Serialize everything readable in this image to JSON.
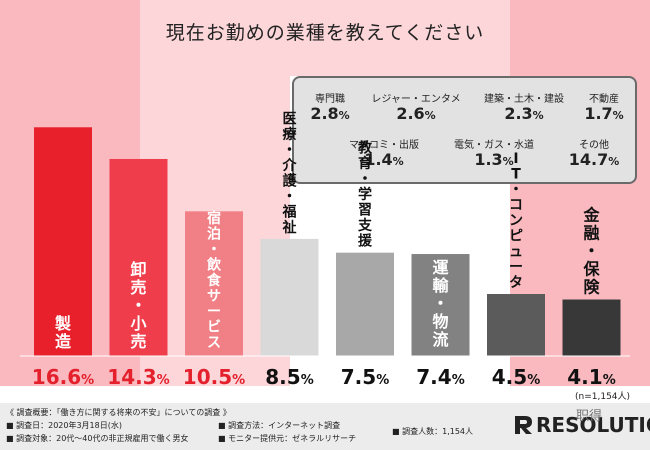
{
  "title": "現在お勤めの業種を教えてください",
  "chart_data": {
    "type": "bar",
    "unit": "%",
    "ylim": [
      0,
      18
    ],
    "categories": [
      "製造",
      "卸売・小売",
      "宿泊・飲食サービス",
      "医療・介護・福祉",
      "教育・学習支援",
      "運輸・物流",
      "IT・コンピュータ",
      "金融・保険"
    ],
    "values": [
      16.6,
      14.3,
      10.5,
      8.5,
      7.5,
      7.4,
      4.5,
      4.1
    ],
    "colors": [
      "#e8202c",
      "#ef3d4b",
      "#f08085",
      "#d9d9d9",
      "#a8a8a8",
      "#828282",
      "#5b5b5b",
      "#383838"
    ],
    "n_label": "(n=1,154人)",
    "others": [
      {
        "label": "専門職",
        "value": 2.8
      },
      {
        "label": "レジャー・エンタメ",
        "value": 2.6
      },
      {
        "label": "建築・土木・建設",
        "value": 2.3
      },
      {
        "label": "不動産",
        "value": 1.7
      },
      {
        "label": "マスコミ・出版",
        "value": 1.4
      },
      {
        "label": "電気・ガス・水道",
        "value": 1.3
      },
      {
        "label": "その他",
        "value": 14.7
      }
    ]
  },
  "footer": {
    "overview": "《 調査概要：「働き方に関する将来の不安」についての調査 》",
    "date": "■ 調査日：2020年3月18日(水)",
    "target": "■ 調査対象：20代〜40代の非正規雇用で働く男女",
    "method": "■ 調査方法：インターネット調査",
    "provider": "■ モニター提供元：ゼネラルリサーチ",
    "count": "■ 調査人数：1,154人"
  },
  "logo": "RESOLUTION",
  "watermark": "职得",
  "colors": {
    "bg_pink": "#f9b9bf",
    "bg_pink_light": "#fcd6d9",
    "footer": "#ececec"
  }
}
